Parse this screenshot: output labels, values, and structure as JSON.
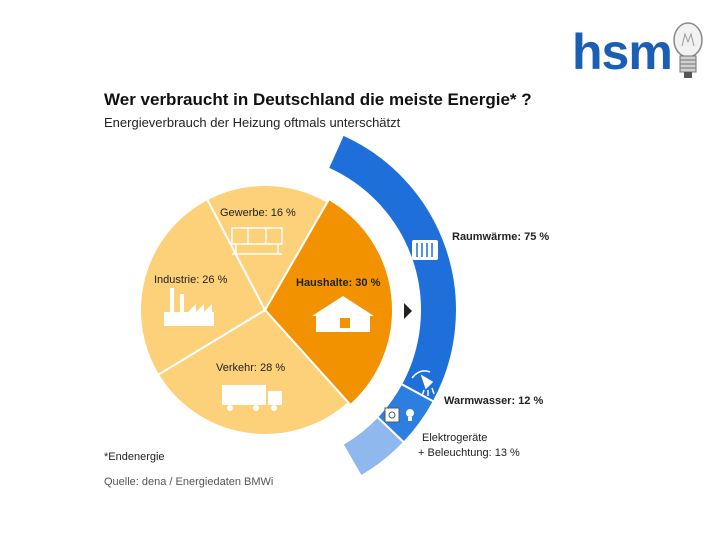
{
  "logo": {
    "text": "hsm",
    "icon": "light-bulb-icon"
  },
  "chart_data": {
    "type": "pie",
    "title": "Wer verbraucht in Deutschland die meiste Energie* ?",
    "subtitle": "Energieverbrauch der Heizung oftmals unterschätzt",
    "unit": "%",
    "slices": [
      {
        "name": "Haushalte",
        "value": 30,
        "label": "Haushalte: 30 %",
        "color": "#f39200",
        "icon": "house-icon"
      },
      {
        "name": "Verkehr",
        "value": 28,
        "label": "Verkehr: 28 %",
        "color": "#fdd07a",
        "icon": "truck-icon"
      },
      {
        "name": "Industrie",
        "value": 26,
        "label": "Industrie: 26 %",
        "color": "#fdd07a",
        "icon": "factory-icon"
      },
      {
        "name": "Gewerbe",
        "value": 16,
        "label": "Gewerbe: 16 %",
        "color": "#fdd07a",
        "icon": "shop-icon"
      }
    ],
    "breakdown": {
      "of": "Haushalte",
      "segments": [
        {
          "name": "Raumwärme",
          "value": 75,
          "label": "Raumwärme: 75 %",
          "color": "#1e6fd9",
          "icon": "radiator-icon"
        },
        {
          "name": "Warmwasser",
          "value": 12,
          "label": "Warmwasser: 12 %",
          "color": "#2c7ee0",
          "icon": "shower-icon"
        },
        {
          "name": "Elektrogeräte + Beleuchtung",
          "value": 13,
          "label_line1": "Elektrogeräte",
          "label_line2": "+ Beleuchtung: 13 %",
          "color": "#8fb8ee",
          "icon": "appliance-icon"
        }
      ]
    },
    "footnote": "*Endenergie",
    "source": "Quelle: dena / Energiedaten BMWi"
  }
}
